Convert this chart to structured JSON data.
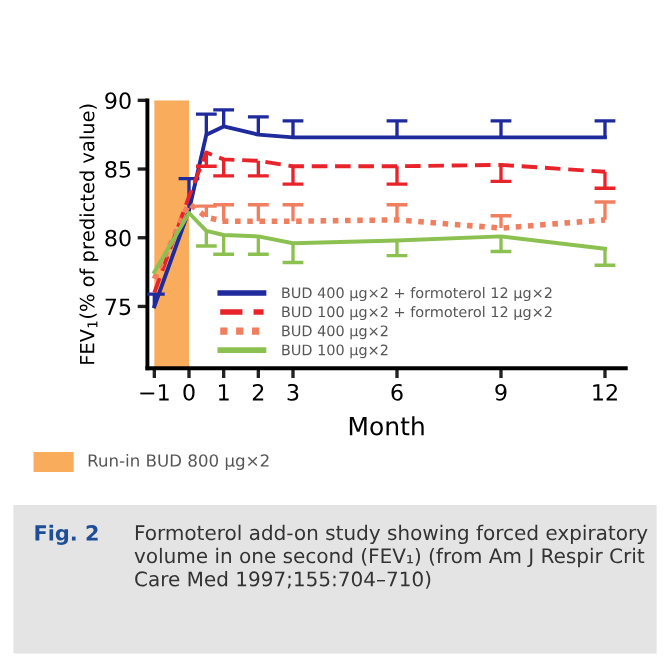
{
  "chart_data": {
    "type": "line",
    "title": "Fig. 2",
    "subtitle": "Formoterol add-on study showing forced expiratory volume in one second (FEV₁) (from Am J Respir Crit Care Med 1997;155:704–710)",
    "xlabel": "Month",
    "ylabel": "FEV$_{1}$(% of predicted value)",
    "series": [
      {
        "name": "BUD 400 μg×2 + formoterol 12 μg×2",
        "color": "#1f2a9c",
        "line_style": "solid",
        "x": [
          -1,
          0,
          0.5,
          1,
          2,
          3,
          6,
          9,
          12
        ],
        "values": [
          75.0,
          82.0,
          87.5,
          88.1,
          87.5,
          87.3,
          87.3,
          87.3,
          87.3
        ],
        "errors": [
          [
            75.0,
            75.9
          ],
          [
            82.0,
            84.3
          ],
          [
            87.5,
            89.0
          ],
          [
            88.1,
            89.3
          ],
          [
            87.5,
            88.8
          ],
          [
            87.3,
            88.5
          ],
          [
            87.3,
            88.5
          ],
          [
            87.3,
            88.5
          ],
          [
            87.3,
            88.5
          ]
        ]
      },
      {
        "name": "BUD 100 μg×2 + formoterol 12 μg×2",
        "color": "#e8232a",
        "line_style": "dashed",
        "x": [
          -1,
          0,
          0.5,
          1,
          2,
          3,
          6,
          9,
          12
        ],
        "values": [
          76.0,
          83.0,
          86.2,
          85.7,
          85.6,
          85.2,
          85.2,
          85.3,
          84.8
        ],
        "errors": [
          null,
          null,
          [
            85.2,
            86.2
          ],
          [
            84.5,
            85.7
          ],
          [
            84.5,
            85.6
          ],
          [
            83.9,
            85.2
          ],
          [
            83.9,
            85.2
          ],
          [
            84.1,
            85.3
          ],
          [
            83.6,
            84.8
          ]
        ]
      },
      {
        "name": "BUD 400 μg×2",
        "color": "#f07f5f",
        "line_style": "dotted",
        "x": [
          -1,
          0,
          0.5,
          1,
          2,
          3,
          6,
          9,
          12
        ],
        "values": [
          77.0,
          82.5,
          81.5,
          81.2,
          81.2,
          81.2,
          81.3,
          80.7,
          81.3
        ],
        "errors": [
          null,
          null,
          [
            81.5,
            82.3
          ],
          [
            81.2,
            82.4
          ],
          [
            81.2,
            82.4
          ],
          [
            81.2,
            82.4
          ],
          [
            81.3,
            82.4
          ],
          [
            80.7,
            81.6
          ],
          [
            81.3,
            82.6
          ]
        ]
      },
      {
        "name": "BUD 100 μg×2",
        "color": "#8cc152",
        "line_style": "solid",
        "x": [
          -1,
          0,
          0.5,
          1,
          2,
          3,
          6,
          9,
          12
        ],
        "values": [
          77.5,
          81.8,
          80.5,
          80.2,
          80.1,
          79.6,
          79.8,
          80.1,
          79.2
        ],
        "errors": [
          null,
          null,
          [
            79.4,
            80.5
          ],
          [
            78.8,
            80.2
          ],
          [
            78.8,
            80.1
          ],
          [
            78.2,
            79.6
          ],
          [
            78.7,
            79.8
          ],
          [
            79.0,
            80.1
          ],
          [
            78.0,
            79.2
          ]
        ]
      }
    ],
    "bands": [
      {
        "axis": "x",
        "from": -1,
        "to": 0,
        "label": "Run-in BUD 800 μg×2",
        "color": "#f9ad5c"
      }
    ],
    "xlim": [
      -1.2,
      12.6
    ],
    "ylim": [
      70.5,
      90
    ],
    "xticks": [
      {
        "value": -1,
        "label": "−1"
      },
      0,
      1,
      2,
      3,
      6,
      9,
      12
    ],
    "yticks": [
      75,
      80,
      85,
      90
    ],
    "grid": false,
    "legend": "bottom",
    "marker": "none"
  }
}
